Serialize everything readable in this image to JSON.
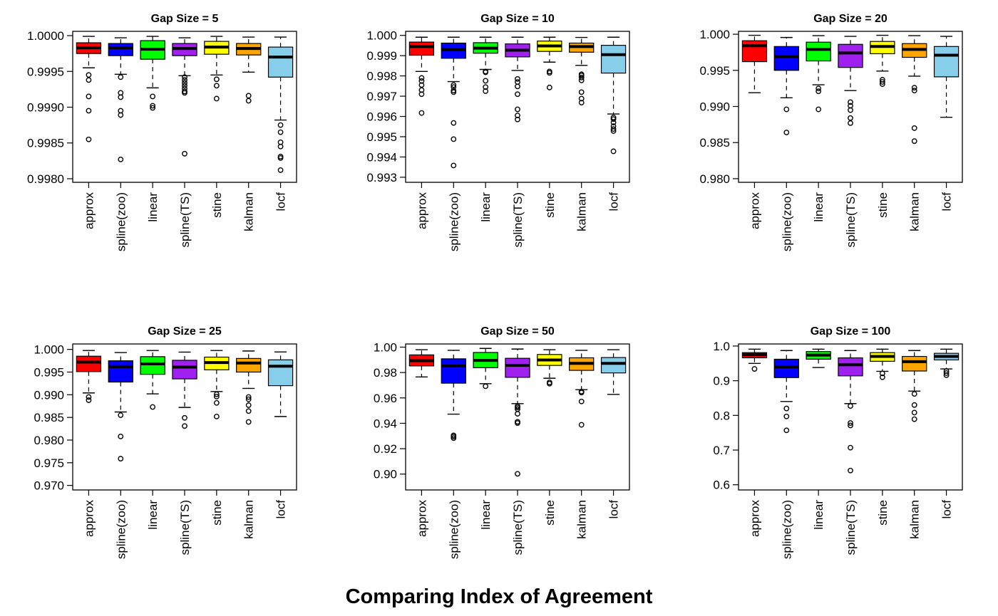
{
  "figure": {
    "title": "Comparing Index of Agreement"
  },
  "colors": {
    "approx": "#FF0000",
    "spline(zoo)": "#0000FF",
    "linear": "#00FF00",
    "spline(TS)": "#A020F0",
    "stine": "#FFFF00",
    "kalman": "#FFA500",
    "locf": "#87CEEB"
  },
  "chart_data": [
    {
      "type": "box",
      "title": "Gap Size = 5",
      "categories": [
        "approx",
        "spline(zoo)",
        "linear",
        "spline(TS)",
        "stine",
        "kalman",
        "locf"
      ],
      "ylim": [
        0.99795,
        1.00006
      ],
      "yticks": [
        0.998,
        0.9985,
        0.999,
        0.9995,
        1.0
      ],
      "ytick_labels": [
        "0.9980",
        "0.9985",
        "0.9990",
        "0.9995",
        "1.0000"
      ],
      "boxes": [
        {
          "whisker_low": 0.99955,
          "q1": 0.99975,
          "median": 0.99983,
          "q3": 0.9999,
          "whisker_high": 0.99999,
          "outliers": [
            0.99945,
            0.99938,
            0.99915,
            0.99895,
            0.99855
          ]
        },
        {
          "whisker_low": 0.99946,
          "q1": 0.99972,
          "median": 0.99983,
          "q3": 0.99989,
          "whisker_high": 0.99997,
          "outliers": [
            0.99942,
            0.9992,
            0.99914,
            0.99895,
            0.99889,
            0.99827
          ]
        },
        {
          "whisker_low": 0.99927,
          "q1": 0.99967,
          "median": 0.99981,
          "q3": 0.99993,
          "whisker_high": 0.99999,
          "outliers": [
            0.99915,
            0.99902,
            0.99899
          ]
        },
        {
          "whisker_low": 0.99944,
          "q1": 0.99972,
          "median": 0.99982,
          "q3": 0.99989,
          "whisker_high": 0.99997,
          "outliers": [
            0.99942,
            0.99938,
            0.99934,
            0.9993,
            0.99926,
            0.99922,
            0.9992,
            0.99835
          ]
        },
        {
          "whisker_low": 0.99945,
          "q1": 0.99974,
          "median": 0.99984,
          "q3": 0.99992,
          "whisker_high": 0.99999,
          "outliers": [
            0.99939,
            0.9993,
            0.99912
          ]
        },
        {
          "whisker_low": 0.99949,
          "q1": 0.99973,
          "median": 0.99982,
          "q3": 0.99989,
          "whisker_high": 0.99998,
          "outliers": [
            0.99916,
            0.99909
          ]
        },
        {
          "whisker_low": 0.99882,
          "q1": 0.99942,
          "median": 0.9997,
          "q3": 0.99984,
          "whisker_high": 0.99998,
          "outliers": [
            0.99875,
            0.99865,
            0.99851,
            0.99845,
            0.99831,
            0.99829,
            0.99812
          ]
        }
      ]
    },
    {
      "type": "box",
      "title": "Gap Size = 10",
      "categories": [
        "approx",
        "spline(zoo)",
        "linear",
        "spline(TS)",
        "stine",
        "kalman",
        "locf"
      ],
      "ylim": [
        0.99275,
        1.0002
      ],
      "yticks": [
        0.993,
        0.994,
        0.995,
        0.996,
        0.997,
        0.998,
        0.999,
        1.0
      ],
      "ytick_labels": [
        "0.993",
        "0.994",
        "0.995",
        "0.996",
        "0.997",
        "0.998",
        "0.999",
        "1.000"
      ],
      "boxes": [
        {
          "whisker_low": 0.99822,
          "q1": 0.99902,
          "median": 0.99945,
          "q3": 0.99967,
          "whisker_high": 0.99991,
          "outliers": [
            0.9979,
            0.99775,
            0.99755,
            0.9973,
            0.9971,
            0.99617
          ]
        },
        {
          "whisker_low": 0.99772,
          "q1": 0.99887,
          "median": 0.9993,
          "q3": 0.99962,
          "whisker_high": 0.99991,
          "outliers": [
            0.99755,
            0.99745,
            0.99728,
            0.9972,
            0.99568,
            0.99488,
            0.99358
          ]
        },
        {
          "whisker_low": 0.99832,
          "q1": 0.99912,
          "median": 0.99937,
          "q3": 0.99964,
          "whisker_high": 0.99991,
          "outliers": [
            0.99822,
            0.99818,
            0.99776,
            0.99745,
            0.99725
          ]
        },
        {
          "whisker_low": 0.99827,
          "q1": 0.99894,
          "median": 0.99927,
          "q3": 0.99958,
          "whisker_high": 0.99991,
          "outliers": [
            0.99785,
            0.9977,
            0.99748,
            0.9971,
            0.99635,
            0.99605,
            0.99585
          ]
        },
        {
          "whisker_low": 0.99868,
          "q1": 0.99921,
          "median": 0.99948,
          "q3": 0.99972,
          "whisker_high": 0.99991,
          "outliers": [
            0.99822,
            0.99815,
            0.99743
          ]
        },
        {
          "whisker_low": 0.99852,
          "q1": 0.99917,
          "median": 0.99945,
          "q3": 0.99962,
          "whisker_high": 0.9999,
          "outliers": [
            0.99808,
            0.99802,
            0.99792,
            0.99778,
            0.9972,
            0.99688,
            0.99668
          ]
        },
        {
          "whisker_low": 0.99612,
          "q1": 0.99814,
          "median": 0.99905,
          "q3": 0.99951,
          "whisker_high": 0.99991,
          "outliers": [
            0.99595,
            0.99587,
            0.9957,
            0.99552,
            0.99538,
            0.99528,
            0.99428
          ]
        }
      ]
    },
    {
      "type": "box",
      "title": "Gap Size = 20",
      "categories": [
        "approx",
        "spline(zoo)",
        "linear",
        "spline(TS)",
        "stine",
        "kalman",
        "locf"
      ],
      "ylim": [
        0.9795,
        1.0004
      ],
      "yticks": [
        0.98,
        0.985,
        0.99,
        0.995,
        1.0
      ],
      "ytick_labels": [
        "0.980",
        "0.985",
        "0.990",
        "0.995",
        "1.000"
      ],
      "boxes": [
        {
          "whisker_low": 0.9919,
          "q1": 0.9962,
          "median": 0.9984,
          "q3": 0.9991,
          "whisker_high": 0.99985,
          "outliers": []
        },
        {
          "whisker_low": 0.9912,
          "q1": 0.995,
          "median": 0.9969,
          "q3": 0.9983,
          "whisker_high": 0.99955,
          "outliers": [
            0.9896,
            0.9864
          ]
        },
        {
          "whisker_low": 0.993,
          "q1": 0.9963,
          "median": 0.9979,
          "q3": 0.9989,
          "whisker_high": 0.9998,
          "outliers": [
            0.9925,
            0.9921,
            0.9896
          ]
        },
        {
          "whisker_low": 0.9922,
          "q1": 0.9954,
          "median": 0.9974,
          "q3": 0.9986,
          "whisker_high": 0.9997,
          "outliers": [
            0.9906,
            0.9901,
            0.9895,
            0.9884,
            0.9877
          ]
        },
        {
          "whisker_low": 0.9949,
          "q1": 0.9973,
          "median": 0.9983,
          "q3": 0.999,
          "whisker_high": 0.99985,
          "outliers": [
            0.9937,
            0.9934,
            0.9931
          ]
        },
        {
          "whisker_low": 0.9942,
          "q1": 0.9968,
          "median": 0.9979,
          "q3": 0.9987,
          "whisker_high": 0.9998,
          "outliers": [
            0.9926,
            0.9922,
            0.987,
            0.9852
          ]
        },
        {
          "whisker_low": 0.9885,
          "q1": 0.9941,
          "median": 0.9971,
          "q3": 0.9983,
          "whisker_high": 0.9997,
          "outliers": []
        }
      ]
    },
    {
      "type": "box",
      "title": "Gap Size = 25",
      "categories": [
        "approx",
        "spline(zoo)",
        "linear",
        "spline(TS)",
        "stine",
        "kalman",
        "locf"
      ],
      "ylim": [
        0.969,
        1.0012
      ],
      "yticks": [
        0.97,
        0.975,
        0.98,
        0.985,
        0.99,
        0.995,
        1.0
      ],
      "ytick_labels": [
        "0.970",
        "0.975",
        "0.980",
        "0.985",
        "0.990",
        "0.995",
        "1.000"
      ],
      "boxes": [
        {
          "whisker_low": 0.9904,
          "q1": 0.9951,
          "median": 0.9972,
          "q3": 0.9985,
          "whisker_high": 0.99975,
          "outliers": [
            0.9895,
            0.9888
          ]
        },
        {
          "whisker_low": 0.9862,
          "q1": 0.9928,
          "median": 0.9962,
          "q3": 0.9975,
          "whisker_high": 0.9993,
          "outliers": [
            0.9855,
            0.9808,
            0.9759
          ]
        },
        {
          "whisker_low": 0.9902,
          "q1": 0.9945,
          "median": 0.9968,
          "q3": 0.9984,
          "whisker_high": 0.99975,
          "outliers": [
            0.9873
          ]
        },
        {
          "whisker_low": 0.9872,
          "q1": 0.9935,
          "median": 0.9961,
          "q3": 0.9976,
          "whisker_high": 0.9994,
          "outliers": [
            0.9849,
            0.9831
          ]
        },
        {
          "whisker_low": 0.9907,
          "q1": 0.9955,
          "median": 0.9971,
          "q3": 0.9983,
          "whisker_high": 0.99975,
          "outliers": [
            0.9901,
            0.9896,
            0.9882,
            0.9852
          ]
        },
        {
          "whisker_low": 0.9914,
          "q1": 0.995,
          "median": 0.997,
          "q3": 0.998,
          "whisker_high": 0.99965,
          "outliers": [
            0.9895,
            0.989,
            0.9877,
            0.9864,
            0.984
          ]
        },
        {
          "whisker_low": 0.9852,
          "q1": 0.992,
          "median": 0.9963,
          "q3": 0.9977,
          "whisker_high": 0.99945,
          "outliers": []
        }
      ]
    },
    {
      "type": "box",
      "title": "Gap Size = 50",
      "categories": [
        "approx",
        "spline(zoo)",
        "linear",
        "spline(TS)",
        "stine",
        "kalman",
        "locf"
      ],
      "ylim": [
        0.8875,
        1.0025
      ],
      "yticks": [
        0.9,
        0.92,
        0.94,
        0.96,
        0.98,
        1.0
      ],
      "ytick_labels": [
        "0.90",
        "0.92",
        "0.94",
        "0.96",
        "0.98",
        "1.00"
      ],
      "boxes": [
        {
          "whisker_low": 0.9765,
          "q1": 0.9852,
          "median": 0.9893,
          "q3": 0.9939,
          "whisker_high": 0.998,
          "outliers": []
        },
        {
          "whisker_low": 0.9472,
          "q1": 0.9716,
          "median": 0.9852,
          "q3": 0.9908,
          "whisker_high": 0.9975,
          "outliers": [
            0.9305,
            0.9295,
            0.9283
          ]
        },
        {
          "whisker_low": 0.9712,
          "q1": 0.9838,
          "median": 0.9895,
          "q3": 0.9958,
          "whisker_high": 0.999,
          "outliers": [
            0.9692
          ]
        },
        {
          "whisker_low": 0.9555,
          "q1": 0.9762,
          "median": 0.9857,
          "q3": 0.9912,
          "whisker_high": 0.9985,
          "outliers": [
            0.9535,
            0.9525,
            0.9512,
            0.9475,
            0.9412,
            0.9402,
            0.9002
          ]
        },
        {
          "whisker_low": 0.9755,
          "q1": 0.9856,
          "median": 0.9899,
          "q3": 0.9942,
          "whisker_high": 0.998,
          "outliers": [
            0.9722,
            0.9712
          ]
        },
        {
          "whisker_low": 0.9665,
          "q1": 0.9817,
          "median": 0.9872,
          "q3": 0.9916,
          "whisker_high": 0.9975,
          "outliers": [
            0.965,
            0.9642,
            0.9572,
            0.9388
          ]
        },
        {
          "whisker_low": 0.9628,
          "q1": 0.9797,
          "median": 0.9872,
          "q3": 0.9918,
          "whisker_high": 0.998,
          "outliers": []
        }
      ]
    },
    {
      "type": "box",
      "title": "Gap Size = 100",
      "categories": [
        "approx",
        "spline(zoo)",
        "linear",
        "spline(TS)",
        "stine",
        "kalman",
        "locf"
      ],
      "ylim": [
        0.585,
        1.006
      ],
      "yticks": [
        0.6,
        0.7,
        0.8,
        0.9,
        1.0
      ],
      "ytick_labels": [
        "0.6",
        "0.7",
        "0.8",
        "0.9",
        "1.0"
      ],
      "boxes": [
        {
          "whisker_low": 0.95,
          "q1": 0.966,
          "median": 0.975,
          "q3": 0.981,
          "whisker_high": 0.991,
          "outliers": [
            0.934
          ]
        },
        {
          "whisker_low": 0.84,
          "q1": 0.909,
          "median": 0.94,
          "q3": 0.962,
          "whisker_high": 0.987,
          "outliers": [
            0.82,
            0.797,
            0.757
          ]
        },
        {
          "whisker_low": 0.938,
          "q1": 0.962,
          "median": 0.974,
          "q3": 0.984,
          "whisker_high": 0.991,
          "outliers": []
        },
        {
          "whisker_low": 0.834,
          "q1": 0.914,
          "median": 0.946,
          "q3": 0.966,
          "whisker_high": 0.987,
          "outliers": [
            0.827,
            0.778,
            0.771,
            0.707,
            0.641
          ]
        },
        {
          "whisker_low": 0.927,
          "q1": 0.956,
          "median": 0.97,
          "q3": 0.981,
          "whisker_high": 0.991,
          "outliers": [
            0.921,
            0.91
          ]
        },
        {
          "whisker_low": 0.87,
          "q1": 0.928,
          "median": 0.955,
          "q3": 0.97,
          "whisker_high": 0.987,
          "outliers": [
            0.862,
            0.83,
            0.808,
            0.789
          ]
        },
        {
          "whisker_low": 0.934,
          "q1": 0.96,
          "median": 0.97,
          "q3": 0.979,
          "whisker_high": 0.991,
          "outliers": [
            0.928,
            0.922,
            0.916
          ]
        }
      ]
    }
  ]
}
